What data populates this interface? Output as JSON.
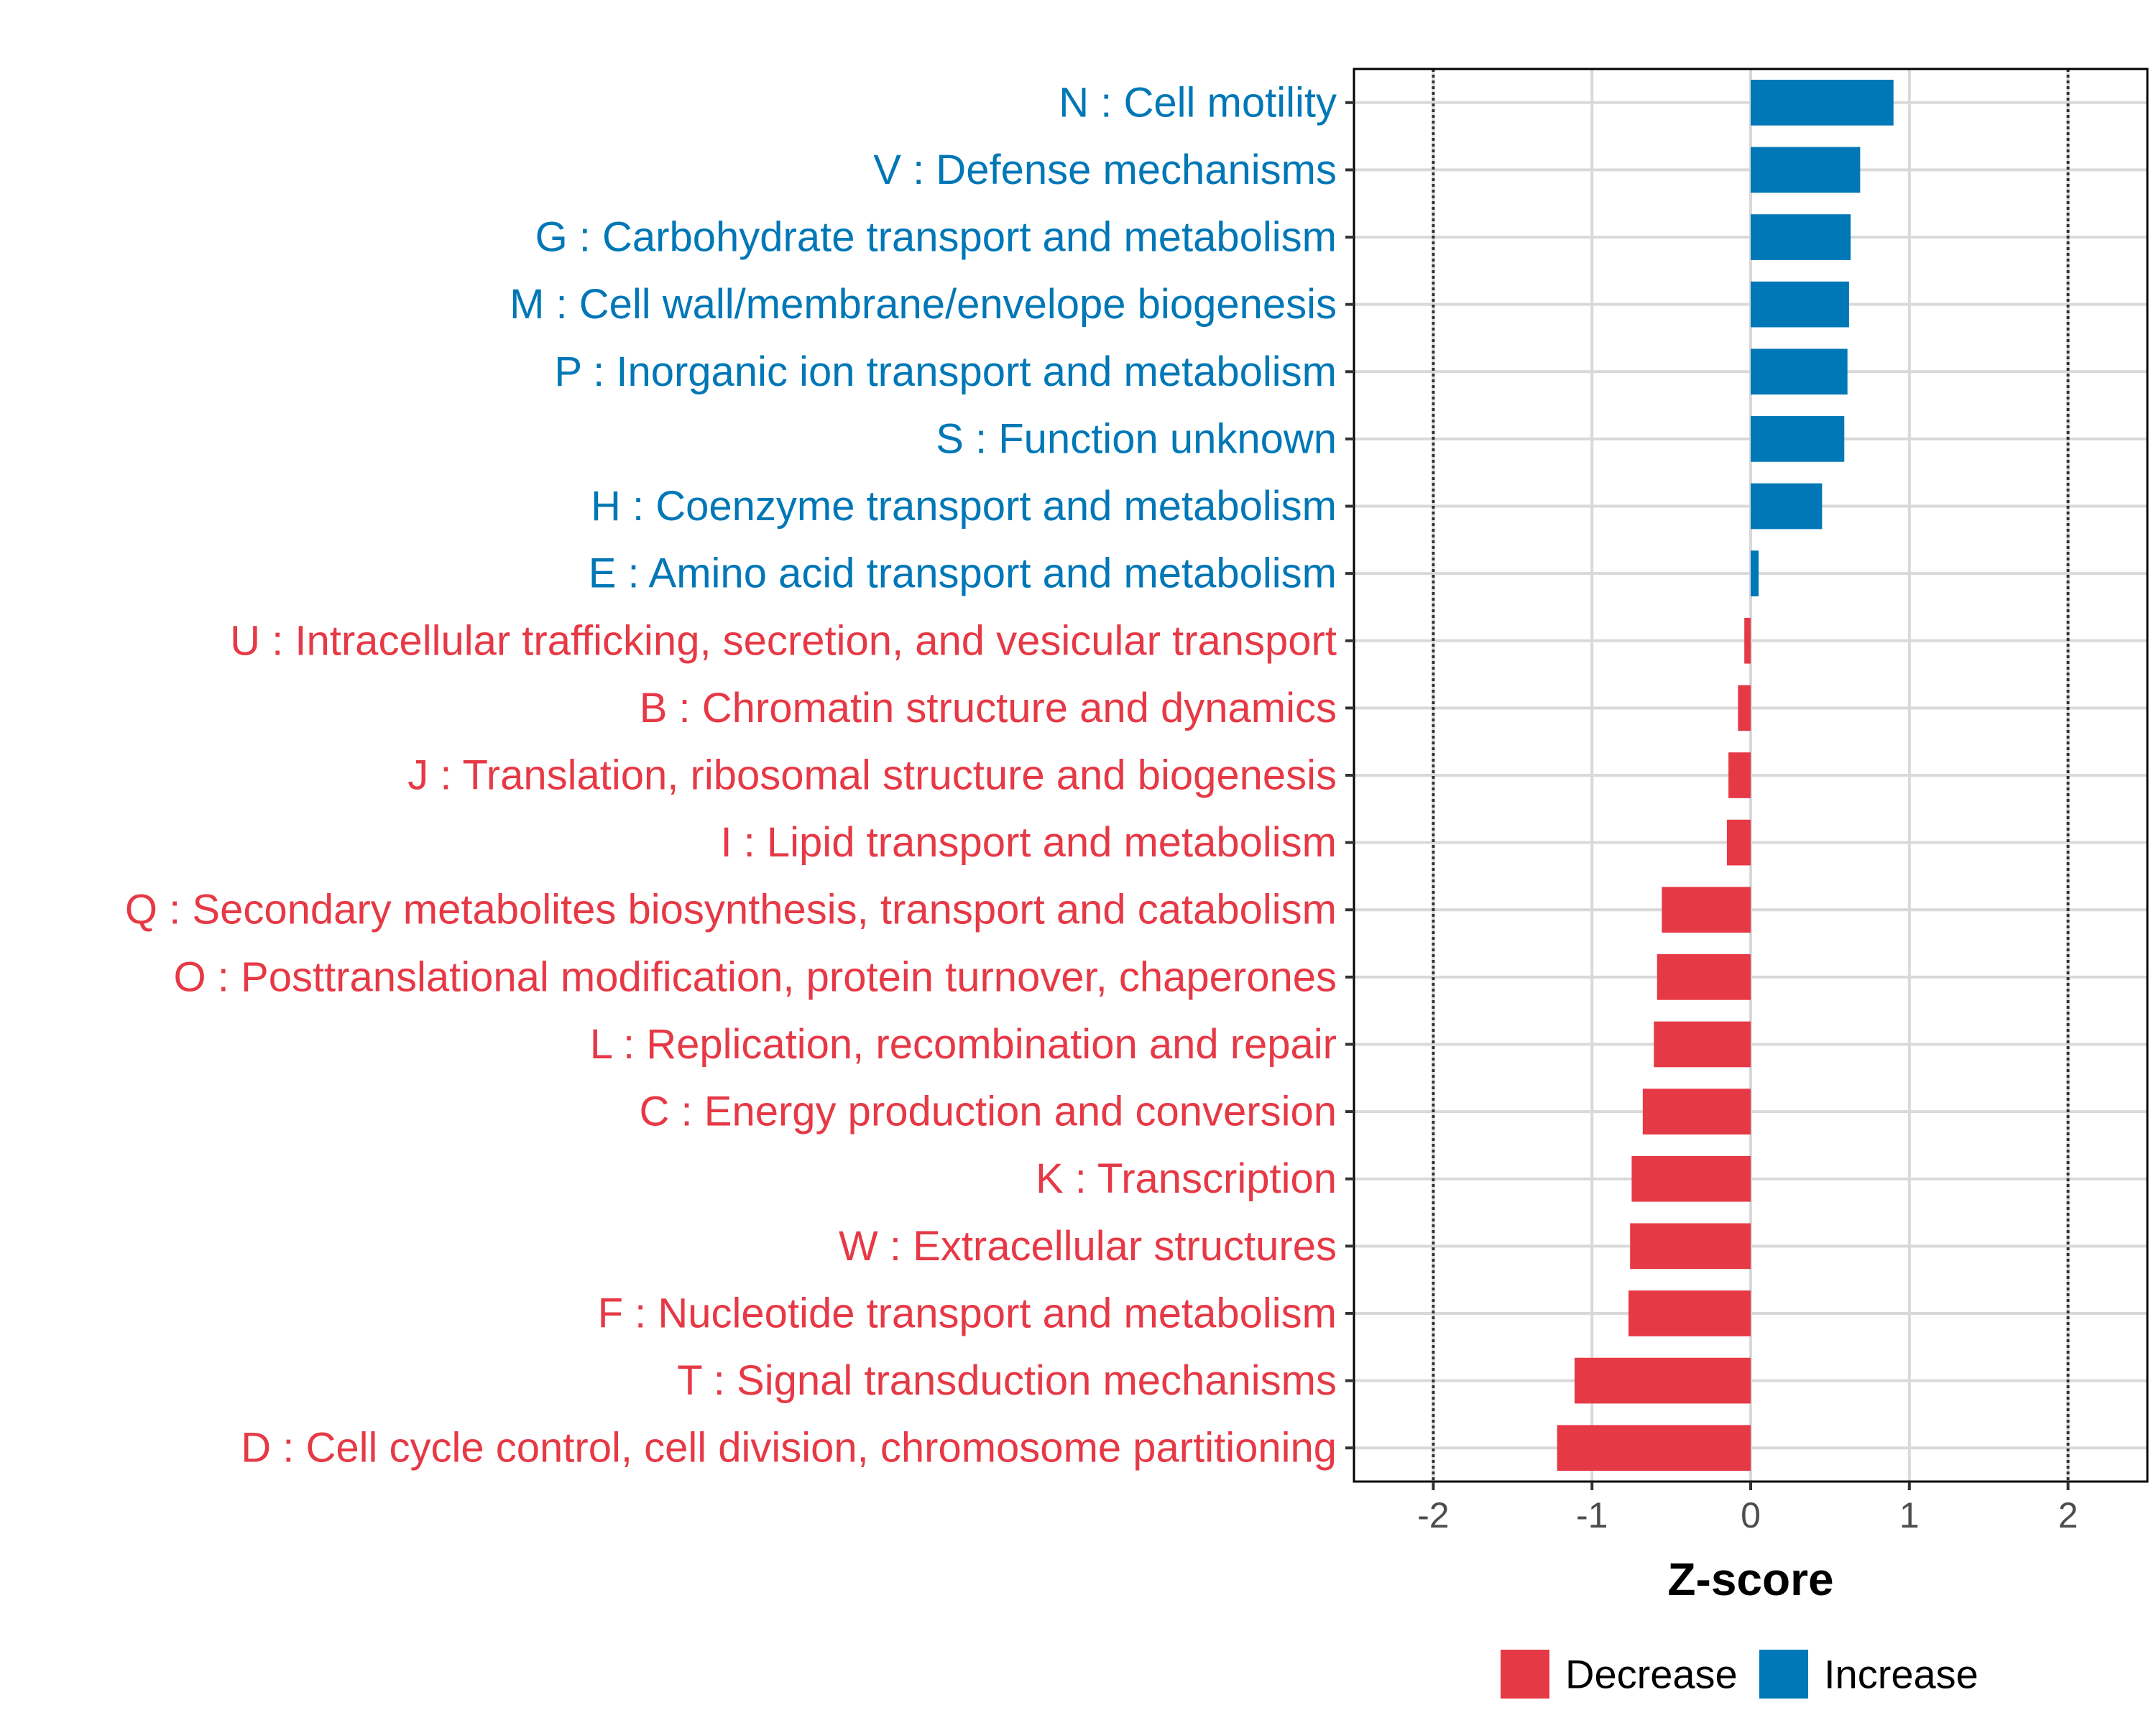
{
  "chart_data": {
    "type": "bar",
    "orientation": "horizontal",
    "title": "",
    "xlabel": "Z-score",
    "ylabel": "",
    "xlim": [
      -2.5,
      2.5
    ],
    "xticks": [
      -2,
      -1,
      0,
      1,
      2
    ],
    "xtick_labels": [
      "-2",
      "-1",
      "0",
      "1",
      "2"
    ],
    "reference_lines": [
      -2,
      2
    ],
    "grid": true,
    "colors": {
      "Decrease": "#E63946",
      "Increase": "#0077B6"
    },
    "legend": {
      "position": "bottom",
      "items": [
        {
          "label": "Decrease",
          "color": "#E63946"
        },
        {
          "label": "Increase",
          "color": "#0077B6"
        }
      ]
    },
    "categories": [
      "N : Cell motility",
      "V : Defense mechanisms",
      "G : Carbohydrate transport and metabolism",
      "M : Cell wall/membrane/envelope biogenesis",
      "P : Inorganic ion transport and metabolism",
      "S : Function unknown",
      "H : Coenzyme transport and metabolism",
      "E : Amino acid transport and metabolism",
      "U : Intracellular trafficking, secretion, and vesicular transport",
      "B : Chromatin structure and dynamics",
      "J : Translation, ribosomal structure and biogenesis",
      "I : Lipid transport and metabolism",
      "Q : Secondary metabolites biosynthesis, transport and catabolism",
      "O : Posttranslational modification, protein turnover, chaperones",
      "L : Replication, recombination and repair",
      "C : Energy production and conversion",
      "K : Transcription",
      "W : Extracellular structures",
      "F : Nucleotide transport and metabolism",
      "T : Signal transduction mechanisms",
      "D : Cell cycle control, cell division, chromosome partitioning"
    ],
    "values": [
      0.9,
      0.69,
      0.63,
      0.62,
      0.61,
      0.59,
      0.45,
      0.05,
      -0.04,
      -0.08,
      -0.14,
      -0.15,
      -0.56,
      -0.59,
      -0.61,
      -0.68,
      -0.75,
      -0.76,
      -0.77,
      -1.11,
      -1.22
    ],
    "groups": [
      "Increase",
      "Increase",
      "Increase",
      "Increase",
      "Increase",
      "Increase",
      "Increase",
      "Increase",
      "Decrease",
      "Decrease",
      "Decrease",
      "Decrease",
      "Decrease",
      "Decrease",
      "Decrease",
      "Decrease",
      "Decrease",
      "Decrease",
      "Decrease",
      "Decrease",
      "Decrease"
    ]
  }
}
